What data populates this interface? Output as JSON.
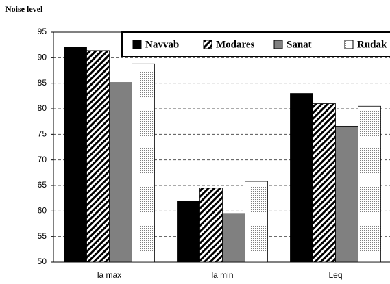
{
  "chart_data": {
    "type": "bar",
    "y_label": "Noise level",
    "categories": [
      "la max",
      "la min",
      "Leq"
    ],
    "series": [
      {
        "name": "Navvab",
        "color": "#000000",
        "pattern": "solid",
        "values": [
          92,
          62,
          83
        ]
      },
      {
        "name": "Modares",
        "color": "#000000",
        "pattern": "hatch",
        "values": [
          91.4,
          64.5,
          81
        ]
      },
      {
        "name": "Sanat",
        "color": "#808080",
        "pattern": "solid",
        "values": [
          85.1,
          59.5,
          76.6
        ]
      },
      {
        "name": "Rudak",
        "color": "#808080",
        "pattern": "dots",
        "values": [
          88.8,
          65.8,
          80.5
        ]
      }
    ],
    "ylim": [
      50,
      95
    ],
    "yticks": [
      50,
      55,
      60,
      65,
      70,
      75,
      80,
      85,
      90,
      95
    ],
    "grid": true,
    "legend": "top"
  }
}
